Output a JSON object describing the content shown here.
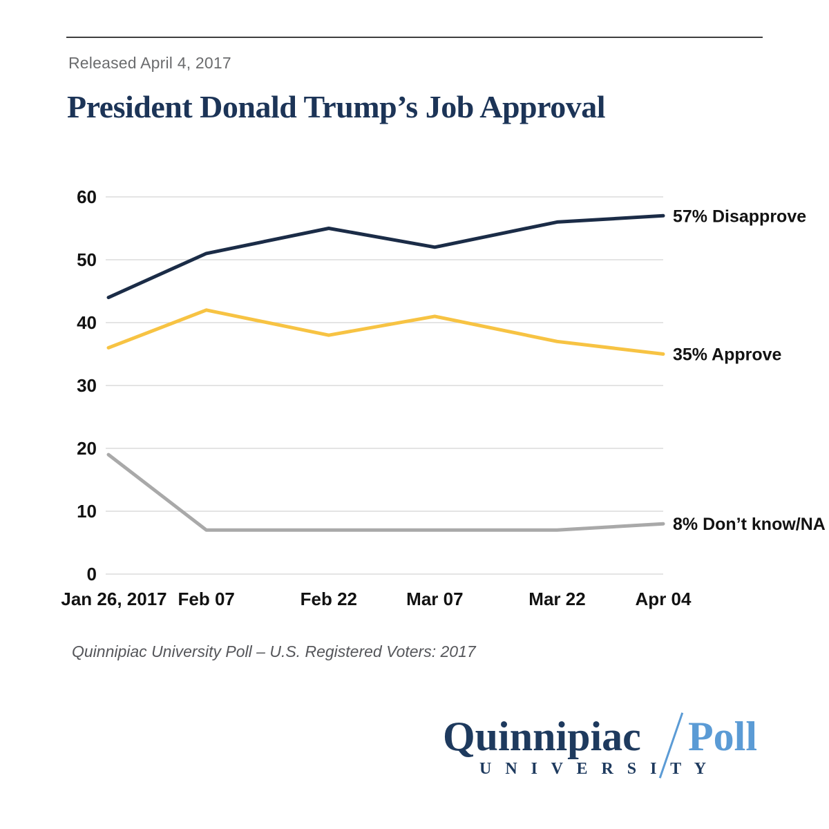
{
  "page": {
    "released": "Released April 4, 2017",
    "title": "President Donald Trump’s Job Approval",
    "source": "Quinnipiac University Poll – U.S. Registered Voters: 2017"
  },
  "logo": {
    "name": "Quinnipiac",
    "poll": "Poll",
    "university": "U N I V E R S I T Y",
    "navy": "#1e3a5e",
    "blue": "#5b9bd5"
  },
  "colors": {
    "title_navy": "#1c3457",
    "released_gray": "#6b6c6e",
    "gridline": "#dcdcdc",
    "tick_text": "#121212",
    "top_rule": "#3e3e3e"
  },
  "chart_data": {
    "type": "line",
    "title": "President Donald Trump’s Job Approval",
    "xlabel": "",
    "ylabel": "",
    "ylim": [
      0,
      60
    ],
    "y_ticks": [
      0,
      10,
      20,
      30,
      40,
      50,
      60
    ],
    "grid": "horizontal",
    "legend_position": "labels-at-line-end",
    "x_tick_labels": [
      "Jan 26, 2017",
      "Feb 07",
      "Feb 22",
      "Mar 07",
      "Mar 22",
      "Apr 04"
    ],
    "x_day_offsets": [
      0,
      12,
      27,
      40,
      55,
      68
    ],
    "series": [
      {
        "name": "Disapprove",
        "label": "57% Disapprove",
        "color": "#1b2c47",
        "values": [
          44,
          51,
          55,
          52,
          56,
          57
        ]
      },
      {
        "name": "Approve",
        "label": "35% Approve",
        "color": "#f7c343",
        "values": [
          36,
          42,
          38,
          41,
          37,
          35
        ]
      },
      {
        "name": "Don't know/NA",
        "label": "8% Don’t know/NA",
        "color": "#a9a9a9",
        "values": [
          19,
          7,
          7,
          7,
          7,
          8
        ]
      }
    ]
  }
}
